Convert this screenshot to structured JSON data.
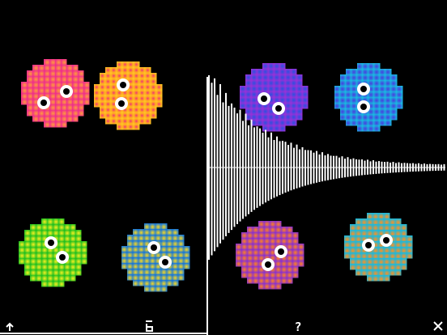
{
  "toolbar": {
    "help": "?"
  }
}
